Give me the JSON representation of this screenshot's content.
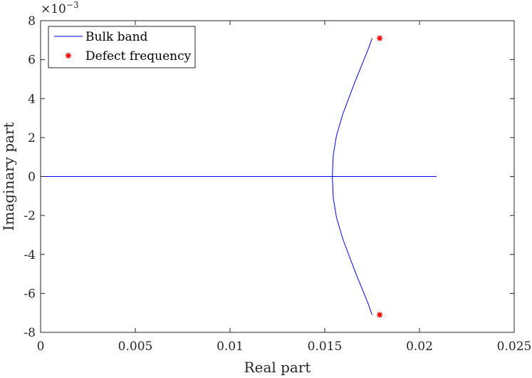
{
  "chart_data": {
    "type": "scatter",
    "xlabel": "Real part",
    "ylabel": "Imaginary part",
    "xlim": [
      0,
      0.025
    ],
    "ylim": [
      -0.008,
      0.008
    ],
    "y_exponent_label": "×10−3",
    "y_exponent_base": "×10",
    "y_exponent_power": "−3",
    "x_ticks": [
      0,
      0.005,
      0.01,
      0.015,
      0.02,
      0.025
    ],
    "x_tick_labels": [
      "0",
      "0.005",
      "0.01",
      "0.015",
      "0.02",
      "0.025"
    ],
    "y_ticks": [
      -0.008,
      -0.006,
      -0.004,
      -0.002,
      0,
      0.002,
      0.004,
      0.006,
      0.008
    ],
    "y_tick_labels": [
      "-8",
      "-6",
      "-4",
      "-2",
      "0",
      "2",
      "4",
      "6",
      "8"
    ],
    "grid": false,
    "legend_position": "top-left",
    "series": [
      {
        "name": "Bulk band",
        "style": "line",
        "color": "#0000ff",
        "segments": [
          {
            "x": [
              0.0,
              0.0209
            ],
            "y": [
              0.0,
              0.0
            ]
          },
          {
            "x": [
              0.0175,
              0.01728,
              0.01661,
              0.01595,
              0.01562,
              0.01545,
              0.0154,
              0.01545,
              0.01562,
              0.01595,
              0.01661,
              0.01728,
              0.0175
            ],
            "y": [
              0.0071,
              0.0065,
              0.0049,
              0.0032,
              0.0021,
              0.0011,
              0.0,
              -0.0011,
              -0.0021,
              -0.0032,
              -0.0049,
              -0.0065,
              -0.0071
            ]
          }
        ]
      },
      {
        "name": "Defect frequency",
        "style": "marker",
        "marker": "*",
        "color": "#ff0000",
        "x": [
          0.0179,
          0.0179
        ],
        "y": [
          0.0071,
          -0.0071
        ]
      }
    ]
  }
}
